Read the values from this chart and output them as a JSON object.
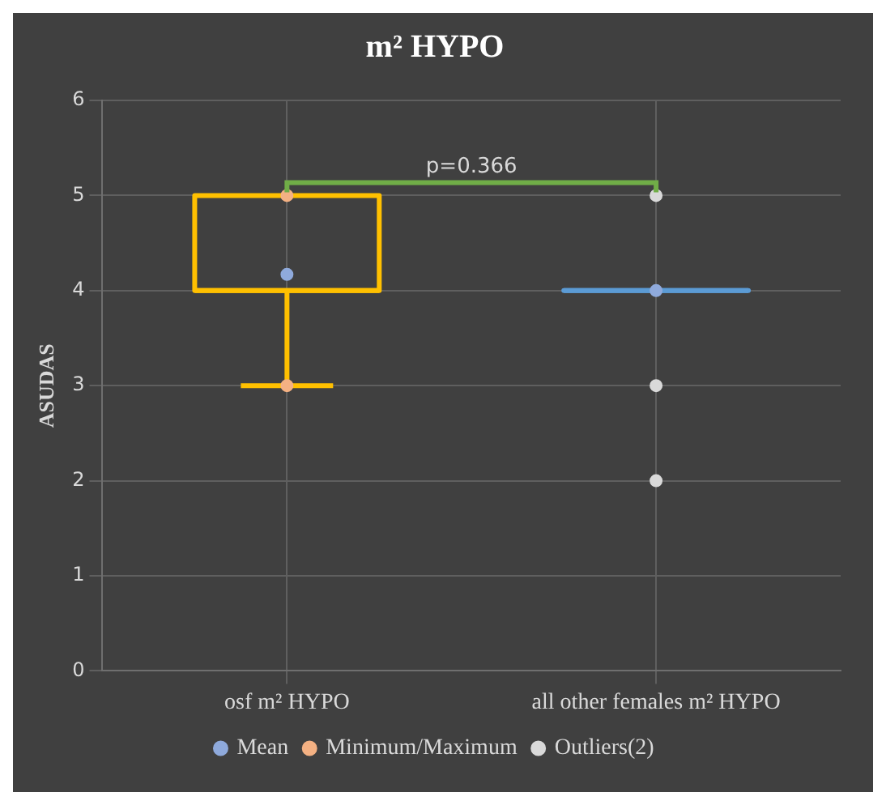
{
  "chart_data": {
    "type": "box",
    "title": "m² HYPO",
    "ylabel": "ASUDAS",
    "categories": [
      "osf m² HYPO",
      "all other females m² HYPO"
    ],
    "colors": [
      "#ffc000",
      "#5b9bd5"
    ],
    "boxes": [
      {
        "low": 3,
        "q1": 4,
        "median": 4,
        "q3": 5,
        "high": 5
      },
      {
        "low": 4,
        "q1": 4,
        "median": 4,
        "q3": 4,
        "high": 4
      }
    ],
    "series": [
      {
        "name": "Mean",
        "type": "scatter",
        "color": "#8faadc",
        "values": [
          4.17,
          4
        ]
      },
      {
        "name": "Minimum/Maximum",
        "type": "scatter",
        "color": "#f4b183",
        "x": [
          "osf m² HYPO",
          "osf m² HYPO"
        ],
        "values": [
          5,
          3
        ]
      },
      {
        "name": "Outliers(2)",
        "type": "scatter",
        "color": "#d9d9d9",
        "x": [
          "all other females m² HYPO",
          "all other females m² HYPO",
          "all other females m² HYPO"
        ],
        "values": [
          5,
          3,
          2
        ]
      }
    ],
    "annotations": [
      "p=0.366"
    ],
    "ylim": [
      0,
      6
    ],
    "yticks": [
      0,
      1,
      2,
      3,
      4,
      5,
      6
    ],
    "grid": true,
    "legend": "bottom",
    "marker": "circle"
  }
}
